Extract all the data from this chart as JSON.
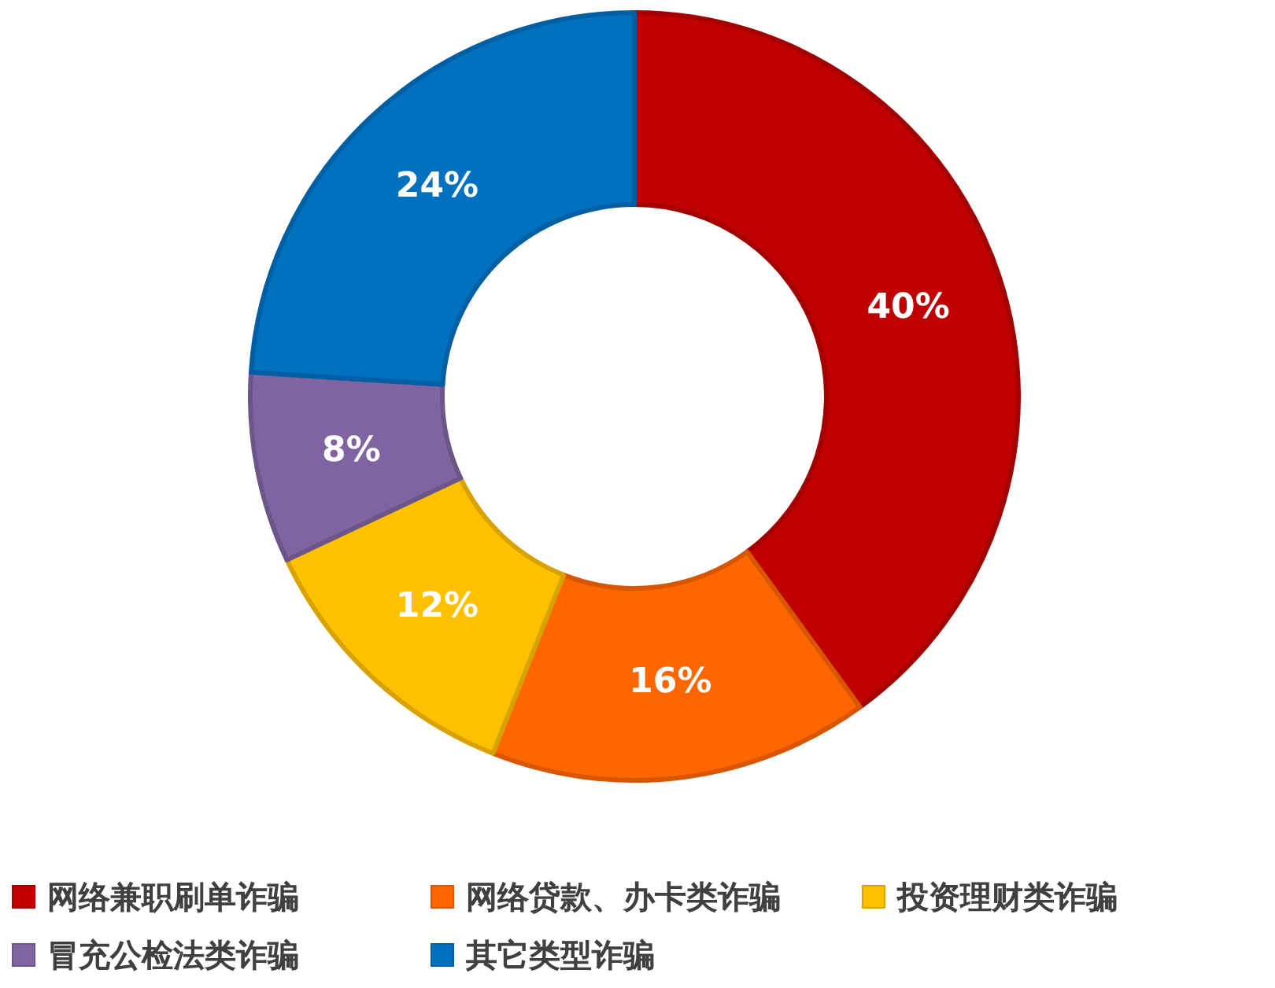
{
  "chart_data": {
    "type": "donut",
    "categories": [
      "网络兼职刷单诈骗",
      "网络贷款、办卡类诈骗",
      "投资理财类诈骗",
      "冒充公检法类诈骗",
      "其它类型诈骗"
    ],
    "values": [
      40,
      16,
      12,
      8,
      24
    ],
    "value_labels": [
      "40%",
      "16%",
      "12%",
      "8%",
      "24%"
    ],
    "colors": [
      "#c00000",
      "#ff6600",
      "#ffc000",
      "#8064a2",
      "#0070c0"
    ],
    "legend": "bottom"
  }
}
